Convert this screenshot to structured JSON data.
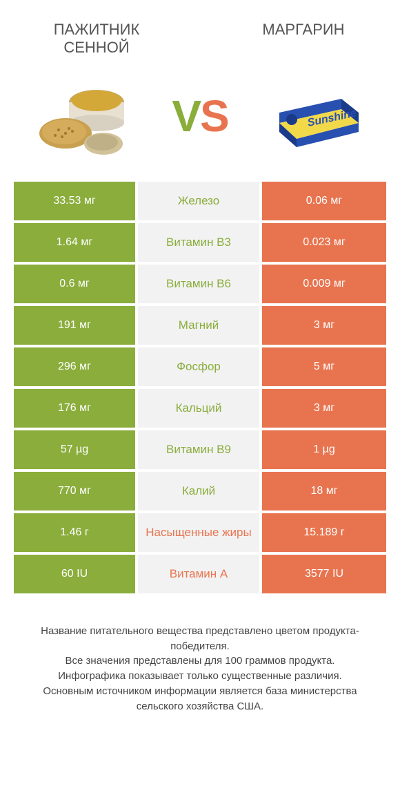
{
  "colors": {
    "green": "#8aad3c",
    "orange": "#e8744f",
    "gray_bg": "#f2f2f2",
    "text_gray": "#555555",
    "footer_gray": "#444444"
  },
  "products": {
    "left": {
      "title": "ПАЖИТНИК СЕННОЙ"
    },
    "right": {
      "title": "МАРГАРИН"
    }
  },
  "vs": {
    "v": "V",
    "s": "S"
  },
  "table": {
    "rows": [
      {
        "left": "33.53 мг",
        "label": "Железо",
        "right": "0.06 мг",
        "winner": "left"
      },
      {
        "left": "1.64 мг",
        "label": "Витамин B3",
        "right": "0.023 мг",
        "winner": "left"
      },
      {
        "left": "0.6 мг",
        "label": "Витамин B6",
        "right": "0.009 мг",
        "winner": "left"
      },
      {
        "left": "191 мг",
        "label": "Магний",
        "right": "3 мг",
        "winner": "left"
      },
      {
        "left": "296 мг",
        "label": "Фосфор",
        "right": "5 мг",
        "winner": "left"
      },
      {
        "left": "176 мг",
        "label": "Кальций",
        "right": "3 мг",
        "winner": "left"
      },
      {
        "left": "57 µg",
        "label": "Витамин B9",
        "right": "1 µg",
        "winner": "left"
      },
      {
        "left": "770 мг",
        "label": "Калий",
        "right": "18 мг",
        "winner": "left"
      },
      {
        "left": "1.46 г",
        "label": "Насыщенные жиры",
        "right": "15.189 г",
        "winner": "right"
      },
      {
        "left": "60 IU",
        "label": "Витамин A",
        "right": "3577 IU",
        "winner": "right"
      }
    ]
  },
  "footer": {
    "line1": "Название питательного вещества представлено цветом продукта-победителя.",
    "line2": "Все значения представлены для 100 граммов продукта.",
    "line3": "Инфографика показывает только существенные различия.",
    "line4": "Основным источником информации является база министерства сельского хозяйства США."
  }
}
